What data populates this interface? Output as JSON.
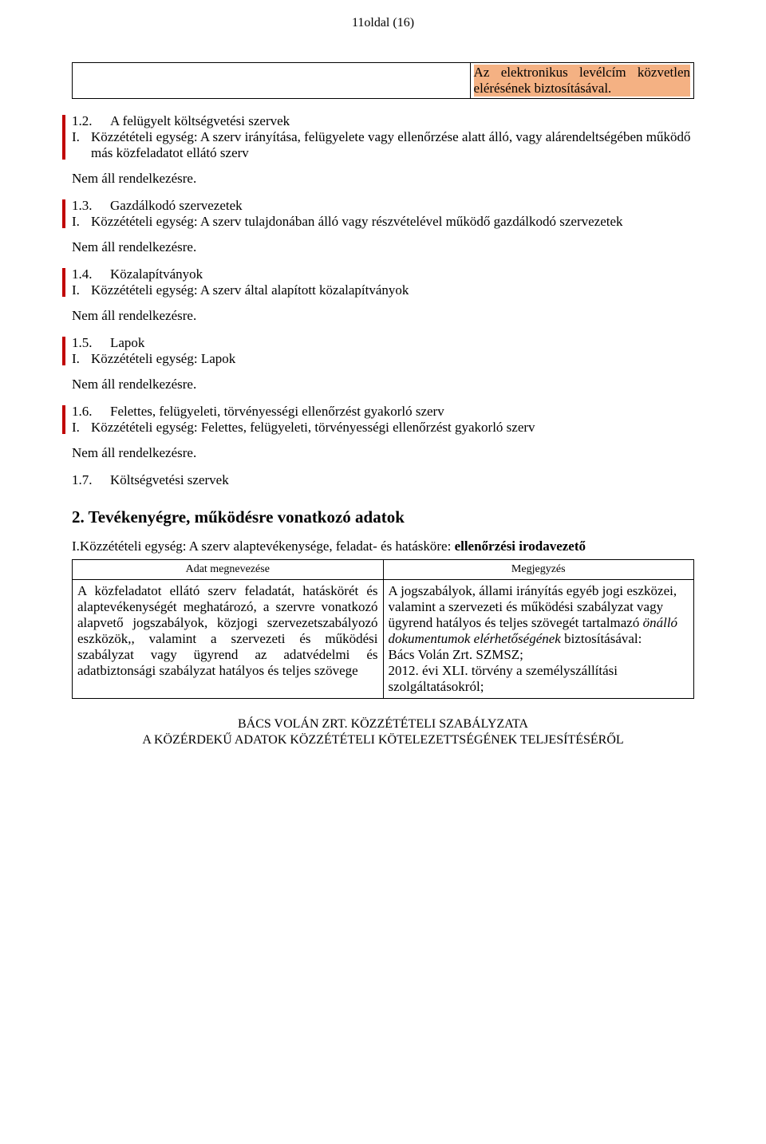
{
  "page": {
    "header": "11oldal (16)",
    "footer_line1": "BÁCS VOLÁN ZRT. KÖZZÉTÉTELI SZABÁLYZATA",
    "footer_line2": "A KÖZÉRDEKŰ ADATOK KÖZZÉTÉTELI KÖTELEZETTSÉGÉNEK TELJESÍTÉSÉRŐL"
  },
  "top_table": {
    "right_text": "Az elektronikus levélcím közvetlen elérésének biztosí­tásával."
  },
  "sections": {
    "s12": {
      "num": "1.2.",
      "title": "A felügyelt költségvetési szervek",
      "roman": "I.",
      "sub": "Közzétételi egység: A szerv irányítása, felügyelete vagy ellenőrzése alatt álló, vagy alá­rendeltségében működő más közfeladatot ellátó szerv",
      "status": "Nem áll rendelkezésre."
    },
    "s13": {
      "num": "1.3.",
      "title": "Gazdálkodó szervezetek",
      "roman": "I.",
      "sub": "Közzétételi egység: A szerv tulajdonában álló vagy részvételével működő gazdálkodó szervezetek",
      "sub_line2": "szervezetek",
      "status": "Nem áll rendelkezésre."
    },
    "s14": {
      "num": "1.4.",
      "title": "Közalapítványok",
      "roman": "I.",
      "sub": "Közzétételi egység: A szerv által alapított közalapítványok",
      "status": "Nem áll rendelkezésre."
    },
    "s15": {
      "num": "1.5.",
      "title": "Lapok",
      "roman": "I.",
      "sub": "Közzétételi egység: Lapok",
      "status": "Nem áll rendelkezésre."
    },
    "s16": {
      "num": "1.6.",
      "title": "Felettes, felügyeleti, törvényességi ellenőrzést gyakorló szerv",
      "roman": "I.",
      "sub": "Közzétételi egység: Felettes, felügyeleti, törvényességi ellenőrzést gyakorló szerv",
      "status": "Nem áll rendelkezésre."
    },
    "s17": {
      "num": "1.7.",
      "title": "Költségvetési szervek"
    }
  },
  "heading2": "2. Tevékenyégre, működésre vonatkozó adatok",
  "intro": {
    "prefix": "I.Közzétételi egység: A szerv alaptevékenysége, feladat- és hatásköre: ",
    "bold": "ellenőrzési irodaveze­tő"
  },
  "table2": {
    "col1_header": "Adat megnevezése",
    "col2_header": "Megjegyzés",
    "row1": {
      "col1": "A közfeladatot ellátó szerv feladatát, hatáskörét és alap­tevékenységét meghatározó, a szervre vonatkozó alap­vető jogszabályok, közjogi szervezetszabályozó eszkö­zök,, valamint a szervezeti és működési szabályzat vagy ügyrend az adatvédelmi és adatbiztonsági szabályzat hatályos és teljes szövege",
      "col2_p1": "A jogszabályok, állami irányítás egyéb jogi eszközei, valamint a szervezeti és működési szabályzat vagy ügyrend hatá­lyos és teljes szövegét tartalmazó ",
      "col2_italic": "önálló dokumentumok elérhetőségének",
      "col2_p2": " biztosítá­sával:",
      "col2_line2": "Bács Volán Zrt. SZMSZ;",
      "col2_line3": "2012. évi  XLI. törvény a személyszállítá­si szolgáltatásokról;"
    }
  }
}
